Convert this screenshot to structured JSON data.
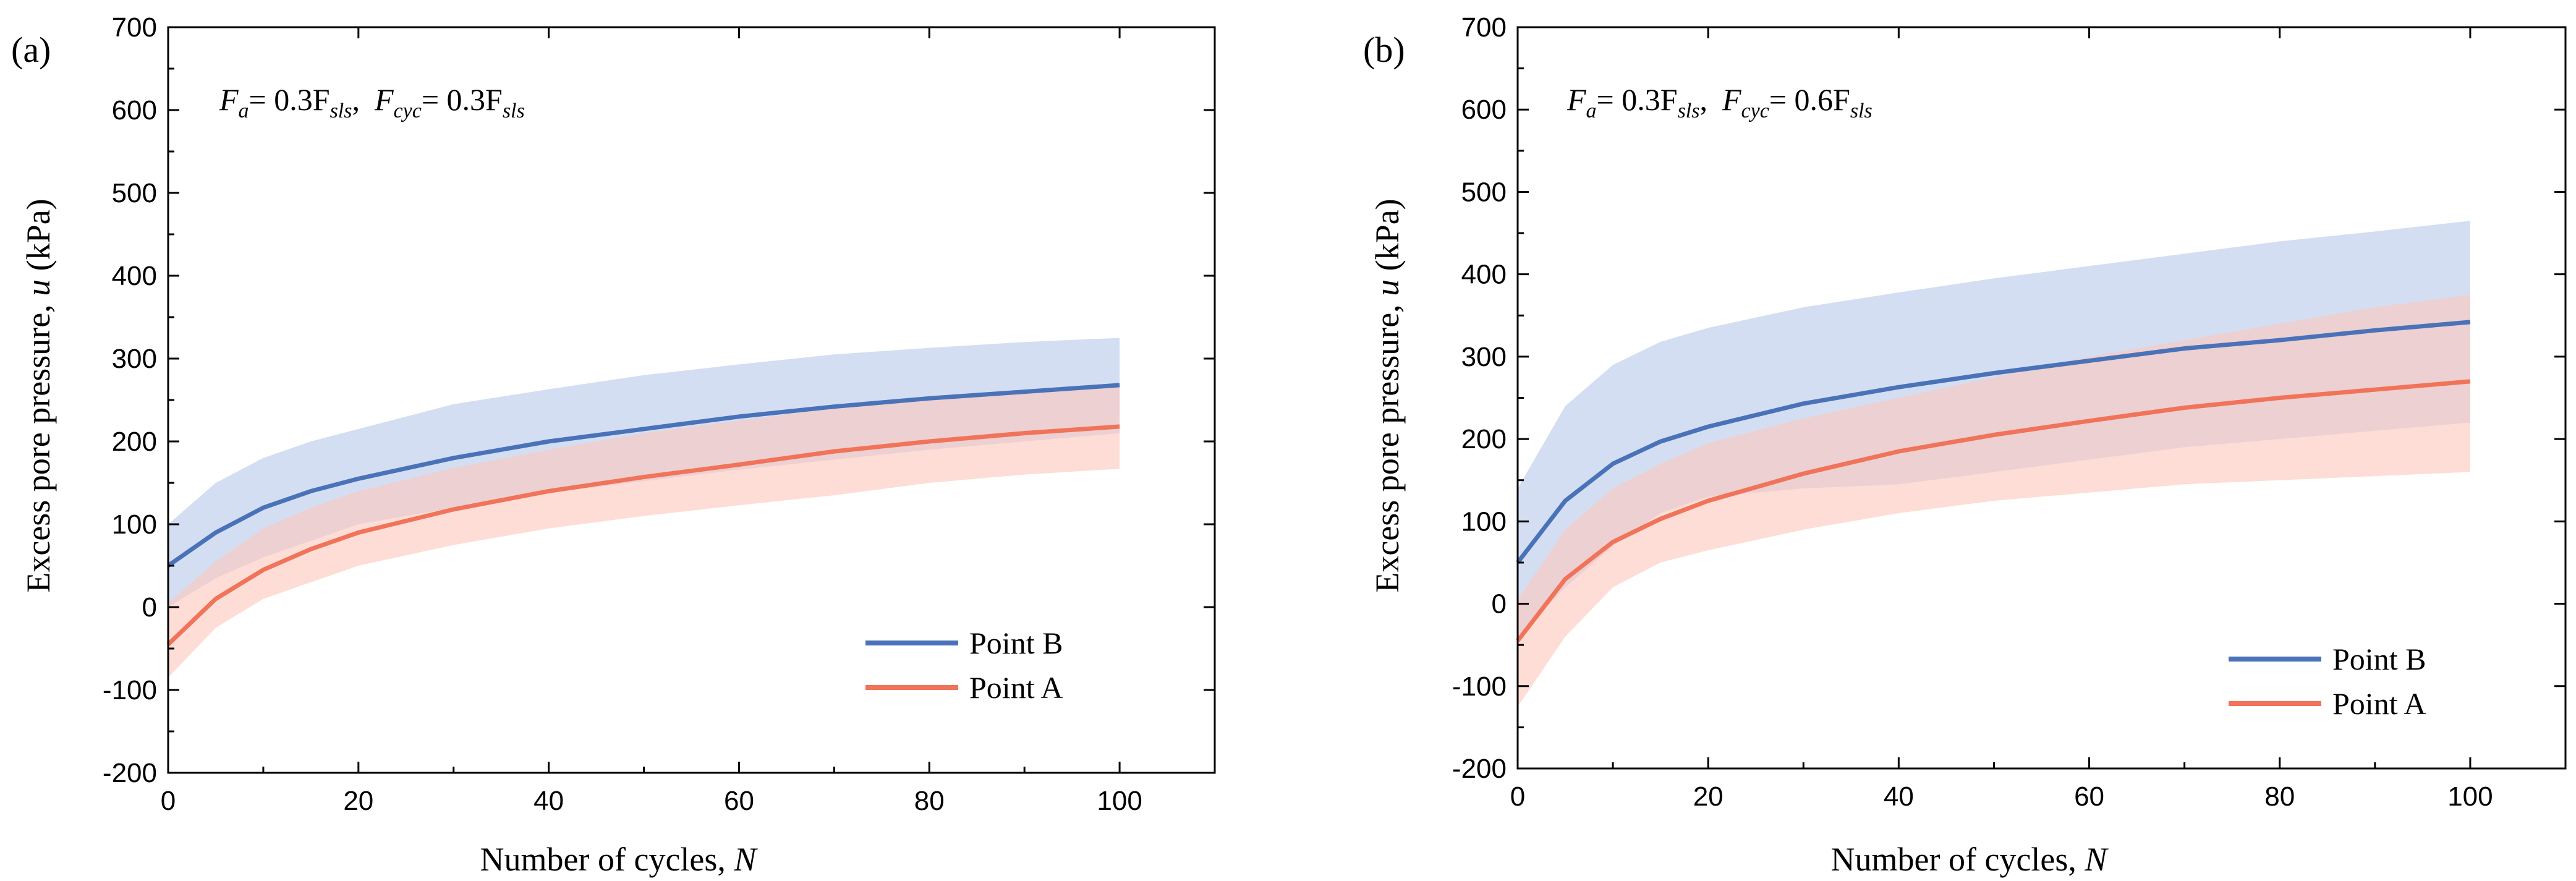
{
  "chart_data": [
    {
      "type": "line",
      "panel_label": "(a)",
      "annotation": {
        "left_symbol": "F",
        "left_sub": "a",
        "left_eq": "= 0.3F",
        "left_eq_sub": "sls",
        "sep": ",",
        "right_symbol": "F",
        "right_sub": "cyc",
        "right_eq": "= 0.3F",
        "right_eq_sub": "sls"
      },
      "xlabel": "Number of cycles, ",
      "xlabel_var": "N",
      "ylabel": "Excess pore pressure, ",
      "ylabel_var": "u",
      "ylabel_unit": " (kPa)",
      "xlim": [
        0,
        110
      ],
      "ylim": [
        -200,
        700
      ],
      "xticks": [
        "0",
        "20",
        "40",
        "60",
        "80",
        "100"
      ],
      "yticks": [
        "-200",
        "-100",
        "0",
        "100",
        "200",
        "300",
        "400",
        "500",
        "600",
        "700"
      ],
      "legend_position": "bottom-right",
      "series": [
        {
          "name": "Point B",
          "color": "#4a72b8",
          "band_color": "#b9c9ea",
          "x": [
            0,
            5,
            10,
            15,
            20,
            30,
            40,
            50,
            60,
            70,
            80,
            90,
            100
          ],
          "mean": [
            50,
            90,
            120,
            140,
            155,
            180,
            200,
            215,
            230,
            242,
            252,
            260,
            268
          ],
          "upper": [
            100,
            150,
            180,
            200,
            215,
            245,
            263,
            280,
            293,
            305,
            313,
            320,
            325
          ],
          "lower": [
            0,
            35,
            60,
            80,
            100,
            120,
            138,
            152,
            166,
            178,
            190,
            200,
            210
          ]
        },
        {
          "name": "Point A",
          "color": "#f0735a",
          "band_color": "#fcc8bd",
          "x": [
            0,
            5,
            10,
            15,
            20,
            30,
            40,
            50,
            60,
            70,
            80,
            90,
            100
          ],
          "mean": [
            -45,
            10,
            45,
            70,
            90,
            118,
            140,
            157,
            172,
            188,
            200,
            210,
            218
          ],
          "upper": [
            5,
            55,
            95,
            120,
            140,
            168,
            190,
            210,
            225,
            240,
            252,
            262,
            270
          ],
          "lower": [
            -85,
            -25,
            10,
            30,
            50,
            75,
            95,
            110,
            123,
            135,
            150,
            160,
            167
          ]
        }
      ]
    },
    {
      "type": "line",
      "panel_label": "(b)",
      "annotation": {
        "left_symbol": "F",
        "left_sub": "a",
        "left_eq": "= 0.3F",
        "left_eq_sub": "sls",
        "sep": ",",
        "right_symbol": "F",
        "right_sub": "cyc",
        "right_eq": "= 0.6F",
        "right_eq_sub": "sls"
      },
      "xlabel": "Number of cycles, ",
      "xlabel_var": "N",
      "ylabel": "Excess pore pressure, ",
      "ylabel_var": "u",
      "ylabel_unit": " (kPa)",
      "xlim": [
        0,
        110
      ],
      "ylim": [
        -200,
        700
      ],
      "xticks": [
        "0",
        "20",
        "40",
        "60",
        "80",
        "100"
      ],
      "yticks": [
        "-200",
        "-100",
        "0",
        "100",
        "200",
        "300",
        "400",
        "500",
        "600",
        "700"
      ],
      "legend_position": "bottom-right",
      "series": [
        {
          "name": "Point B",
          "color": "#4a72b8",
          "band_color": "#b9c9ea",
          "x": [
            0,
            5,
            10,
            15,
            20,
            30,
            40,
            50,
            60,
            70,
            80,
            90,
            100
          ],
          "mean": [
            50,
            125,
            170,
            197,
            215,
            243,
            263,
            280,
            295,
            310,
            320,
            332,
            342
          ],
          "upper": [
            140,
            240,
            290,
            318,
            335,
            360,
            378,
            395,
            410,
            425,
            440,
            452,
            465
          ],
          "lower": [
            -40,
            20,
            70,
            110,
            130,
            140,
            145,
            160,
            175,
            190,
            200,
            210,
            220
          ]
        },
        {
          "name": "Point A",
          "color": "#f0735a",
          "band_color": "#fcc8bd",
          "x": [
            0,
            5,
            10,
            15,
            20,
            30,
            40,
            50,
            60,
            70,
            80,
            90,
            100
          ],
          "mean": [
            -45,
            30,
            75,
            103,
            125,
            158,
            185,
            205,
            222,
            238,
            250,
            260,
            270
          ],
          "upper": [
            5,
            90,
            140,
            170,
            195,
            225,
            250,
            275,
            300,
            320,
            340,
            360,
            375
          ],
          "lower": [
            -125,
            -40,
            20,
            50,
            65,
            90,
            110,
            125,
            135,
            145,
            150,
            155,
            160
          ]
        }
      ]
    }
  ]
}
